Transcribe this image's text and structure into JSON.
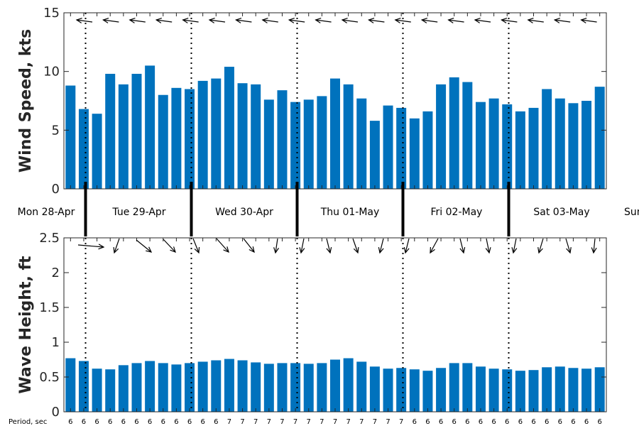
{
  "chart_data": [
    {
      "type": "bar",
      "ylabel": "Wind Speed, kts",
      "ylim": [
        0,
        15
      ],
      "yticks": [
        "0",
        "5",
        "10",
        "15"
      ],
      "color": "#0072BD",
      "values": [
        8.8,
        6.8,
        6.4,
        9.8,
        8.9,
        9.8,
        10.5,
        8.0,
        8.6,
        8.5,
        9.2,
        9.4,
        10.4,
        9.0,
        8.9,
        7.6,
        8.4,
        7.4,
        7.6,
        7.9,
        9.4,
        8.9,
        7.7,
        5.8,
        7.1,
        6.9,
        6.0,
        6.6,
        8.9,
        9.5,
        9.1,
        7.4,
        7.7,
        7.2,
        6.6,
        6.9,
        8.5,
        7.7,
        7.3,
        7.5,
        8.7
      ],
      "direction_arrows": "from the east, blowing westward",
      "grid": false
    },
    {
      "type": "bar",
      "ylabel": "Wave Height, ft",
      "ylim": [
        0,
        2.5
      ],
      "yticks": [
        "0",
        "0.5",
        "1",
        "1.5",
        "2",
        "2.5"
      ],
      "color": "#0072BD",
      "values": [
        0.77,
        0.73,
        0.62,
        0.61,
        0.67,
        0.7,
        0.73,
        0.7,
        0.68,
        0.7,
        0.72,
        0.74,
        0.76,
        0.74,
        0.71,
        0.69,
        0.7,
        0.7,
        0.69,
        0.7,
        0.75,
        0.77,
        0.72,
        0.65,
        0.62,
        0.63,
        0.61,
        0.59,
        0.63,
        0.7,
        0.7,
        0.65,
        0.62,
        0.61,
        0.59,
        0.6,
        0.64,
        0.65,
        0.63,
        0.62,
        0.64
      ],
      "period_label": "Period, sec",
      "periods": [
        "6",
        "6",
        "6",
        "6",
        "6",
        "6",
        "6",
        "6",
        "6",
        "6",
        "6",
        "6",
        "7",
        "7",
        "7",
        "7",
        "7",
        "7",
        "7",
        "7",
        "7",
        "7",
        "7",
        "7",
        "7",
        "7",
        "6",
        "6",
        "6",
        "6",
        "6",
        "6",
        "6",
        "6",
        "6",
        "6",
        "6",
        "6",
        "6",
        "6",
        "6"
      ],
      "grid": false
    }
  ],
  "days": [
    "Mon 28-Apr",
    "Tue 29-Apr",
    "Wed 30-Apr",
    "Thu 01-May",
    "Fri 02-May",
    "Sat 03-May",
    "Sun"
  ]
}
